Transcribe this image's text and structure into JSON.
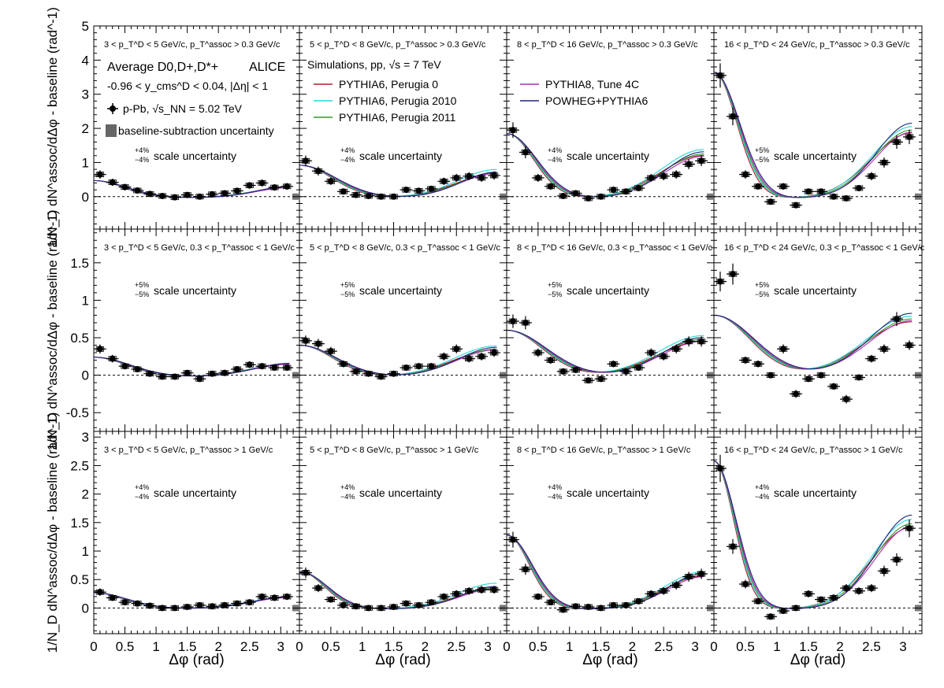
{
  "figure": {
    "experiment": "ALICE",
    "system_label": "Average D0,D+,D*+",
    "rapidity_label": "-0.96 < y_cms^D < 0.04, |Δη| < 1",
    "data_label": "p-Pb, √s_NN = 5.02 TeV",
    "baseline_label": "baseline-subtraction uncertainty",
    "simulations_label": "Simulations, pp, √s = 7 TeV",
    "xlabel": "Δφ (rad)",
    "ylabel": "1/N_D dN^assoc/dΔφ - baseline (rad^-1)"
  },
  "colors": {
    "PYTHIA6, Perugia 0": "#b01f2a",
    "PYTHIA6, Perugia 2010": "#26d6d6",
    "PYTHIA6, Perugia 2011": "#2a9a2a",
    "PYTHIA8, Tune 4C": "#b02ab4",
    "POWHEG+PYTHIA6": "#23237a"
  },
  "x_ticks": [
    "0",
    "0.5",
    "1",
    "1.5",
    "2",
    "2.5",
    "3"
  ],
  "rows": [
    {
      "ylim": [
        -0.95,
        5.0
      ],
      "ticks": [
        0,
        1,
        2,
        3,
        4,
        5
      ],
      "tick_labels": [
        "0",
        "1",
        "2",
        "3",
        "4",
        "5"
      ]
    },
    {
      "ylim": [
        -0.75,
        1.95
      ],
      "ticks": [
        -0.5,
        0,
        0.5,
        1,
        1.5
      ],
      "tick_labels": [
        "-0.5",
        "0",
        "0.5",
        "1",
        "1.5"
      ]
    },
    {
      "ylim": [
        -0.45,
        3.1
      ],
      "ticks": [
        0,
        0.5,
        1,
        1.5,
        2,
        2.5,
        3
      ],
      "tick_labels": [
        "0",
        "0.5",
        "1",
        "1.5",
        "2",
        "2.5",
        "3"
      ]
    }
  ],
  "chart_data": [
    {
      "type": "scatter",
      "row": 0,
      "col": 0,
      "title": {
        "ptd": "3 < p_T^D < 5 GeV/c",
        "assoc": "p_T^assoc > 0.3 GeV/c"
      },
      "scale": "4%",
      "scale_label": "scale uncertainty",
      "x": [
        0.1,
        0.3,
        0.5,
        0.7,
        0.9,
        1.1,
        1.3,
        1.5,
        1.7,
        1.9,
        2.1,
        2.3,
        2.5,
        2.7,
        2.9,
        3.1
      ],
      "y": [
        0.65,
        0.42,
        0.28,
        0.18,
        0.08,
        0.02,
        -0.02,
        0.05,
        0.0,
        0.07,
        0.1,
        0.17,
        0.33,
        0.4,
        0.27,
        0.3
      ],
      "model": {
        "near": 0.5,
        "sig": 0.5,
        "away": 0.3,
        "wa": 0.55,
        "off": -0.03,
        "mod": [
          0.99,
          1.03,
          1.0,
          0.98,
          1.1
        ]
      }
    },
    {
      "type": "scatter",
      "row": 0,
      "col": 1,
      "title": {
        "ptd": "5 < p_T^D < 8 GeV/c",
        "assoc": "p_T^assoc > 0.3 GeV/c"
      },
      "scale": "4%",
      "scale_label": "scale uncertainty",
      "x": [
        0.1,
        0.3,
        0.5,
        0.7,
        0.9,
        1.1,
        1.3,
        1.5,
        1.7,
        1.9,
        2.1,
        2.3,
        2.5,
        2.7,
        2.9,
        3.1
      ],
      "y": [
        1.05,
        0.75,
        0.45,
        0.15,
        0.05,
        0.02,
        0.0,
        0.0,
        0.2,
        0.17,
        0.23,
        0.45,
        0.55,
        0.6,
        0.55,
        0.62
      ],
      "model": {
        "near": 0.95,
        "sig": 0.55,
        "away": 0.75,
        "wa": 0.6,
        "off": -0.03,
        "mod": [
          0.95,
          1.1,
          0.97,
          0.95,
          1.0
        ]
      }
    },
    {
      "type": "scatter",
      "row": 0,
      "col": 2,
      "title": {
        "ptd": "8 < p_T^D < 16 GeV/c",
        "assoc": "p_T^assoc > 0.3 GeV/c"
      },
      "scale": "4%",
      "scale_label": "scale uncertainty",
      "x": [
        0.1,
        0.3,
        0.5,
        0.7,
        0.9,
        1.1,
        1.3,
        1.5,
        1.7,
        1.9,
        2.1,
        2.3,
        2.5,
        2.7,
        2.9,
        3.1
      ],
      "y": [
        1.95,
        1.3,
        0.55,
        0.3,
        0.02,
        0.1,
        -0.05,
        0.0,
        0.2,
        0.15,
        0.25,
        0.55,
        0.6,
        0.65,
        0.95,
        1.05
      ],
      "model": {
        "near": 1.9,
        "sig": 0.45,
        "away": 1.3,
        "wa": 0.65,
        "off": -0.05,
        "mod": [
          0.97,
          1.1,
          1.0,
          0.95,
          1.05
        ]
      }
    },
    {
      "type": "scatter",
      "row": 0,
      "col": 3,
      "title": {
        "ptd": "16 < p_T^D < 24 GeV/c",
        "assoc": "p_T^assoc > 0.3 GeV/c"
      },
      "scale": "5%",
      "scale_label": "scale uncertainty",
      "x": [
        0.1,
        0.3,
        0.5,
        0.7,
        0.9,
        1.1,
        1.3,
        1.5,
        1.7,
        1.9,
        2.1,
        2.3,
        2.5,
        2.7,
        2.9,
        3.1
      ],
      "y": [
        3.55,
        2.35,
        0.65,
        0.3,
        -0.15,
        0.3,
        -0.25,
        0.15,
        0.15,
        0.0,
        -0.05,
        0.25,
        0.6,
        1.0,
        1.6,
        1.75
      ],
      "model": {
        "near": 3.7,
        "sig": 0.38,
        "away": 2.0,
        "wa": 0.6,
        "off": -0.05,
        "mod": [
          0.96,
          1.05,
          1.0,
          0.97,
          1.1
        ]
      }
    },
    {
      "type": "scatter",
      "row": 1,
      "col": 0,
      "title": {
        "ptd": "3 < p_T^D < 5 GeV/c",
        "assoc": "0.3 < p_T^assoc < 1 GeV/c"
      },
      "scale": "5%",
      "scale_label": "scale uncertainty",
      "x": [
        0.1,
        0.3,
        0.5,
        0.7,
        0.9,
        1.1,
        1.3,
        1.5,
        1.7,
        1.9,
        2.1,
        2.3,
        2.5,
        2.7,
        2.9,
        3.1
      ],
      "y": [
        0.35,
        0.22,
        0.12,
        0.08,
        0.02,
        -0.02,
        -0.02,
        0.03,
        -0.05,
        0.02,
        0.03,
        0.08,
        0.14,
        0.12,
        0.1,
        0.1
      ],
      "model": {
        "near": 0.26,
        "sig": 0.55,
        "away": 0.17,
        "wa": 0.6,
        "off": -0.02,
        "mod": [
          0.98,
          1.0,
          1.0,
          0.97,
          1.05
        ]
      }
    },
    {
      "type": "scatter",
      "row": 1,
      "col": 1,
      "title": {
        "ptd": "5 < p_T^D < 8 GeV/c",
        "assoc": "0.3 < p_T^assoc < 1 GeV/c"
      },
      "scale": "5%",
      "scale_label": "scale uncertainty",
      "x": [
        0.1,
        0.3,
        0.5,
        0.7,
        0.9,
        1.1,
        1.3,
        1.5,
        1.7,
        1.9,
        2.1,
        2.3,
        2.5,
        2.7,
        2.9,
        3.1
      ],
      "y": [
        0.46,
        0.42,
        0.32,
        0.15,
        0.05,
        0.02,
        -0.02,
        0.02,
        0.1,
        0.12,
        0.12,
        0.25,
        0.35,
        0.22,
        0.25,
        0.3
      ],
      "model": {
        "near": 0.42,
        "sig": 0.55,
        "away": 0.38,
        "wa": 0.65,
        "off": -0.02,
        "mod": [
          0.95,
          1.08,
          0.97,
          0.95,
          1.03
        ]
      }
    },
    {
      "type": "scatter",
      "row": 1,
      "col": 2,
      "title": {
        "ptd": "8 < p_T^D < 16 GeV/c",
        "assoc": "0.3 < p_T^assoc < 1 GeV/c"
      },
      "scale": "5%",
      "scale_label": "scale uncertainty",
      "x": [
        0.1,
        0.3,
        0.5,
        0.7,
        0.9,
        1.1,
        1.3,
        1.5,
        1.7,
        1.9,
        2.1,
        2.3,
        2.5,
        2.7,
        2.9,
        3.1
      ],
      "y": [
        0.72,
        0.7,
        0.3,
        0.2,
        0.05,
        0.07,
        -0.07,
        -0.05,
        0.15,
        0.05,
        0.1,
        0.3,
        0.25,
        0.35,
        0.45,
        0.45
      ],
      "model": {
        "near": 0.62,
        "sig": 0.6,
        "away": 0.5,
        "wa": 0.7,
        "off": -0.02,
        "mod": [
          0.95,
          1.1,
          1.0,
          0.95,
          1.05
        ]
      }
    },
    {
      "type": "scatter",
      "row": 1,
      "col": 3,
      "title": {
        "ptd": "16 < p_T^D < 24 GeV/c",
        "assoc": "0.3 < p_T^assoc < 1 GeV/c"
      },
      "scale": "5%",
      "scale_label": "scale uncertainty",
      "x": [
        0.1,
        0.3,
        0.5,
        0.7,
        0.9,
        1.1,
        1.3,
        1.5,
        1.7,
        1.9,
        2.1,
        2.3,
        2.5,
        2.7,
        2.9,
        3.1
      ],
      "y": [
        1.25,
        1.35,
        0.2,
        0.15,
        0.0,
        0.35,
        -0.25,
        -0.05,
        0.0,
        -0.15,
        -0.32,
        -0.03,
        0.22,
        0.35,
        0.75,
        0.4
      ],
      "model": {
        "near": 0.8,
        "sig": 0.6,
        "away": 0.75,
        "wa": 0.7,
        "off": 0.0,
        "mod": [
          0.95,
          1.05,
          1.0,
          0.97,
          1.1
        ]
      }
    },
    {
      "type": "scatter",
      "row": 2,
      "col": 0,
      "title": {
        "ptd": "3 < p_T^D < 5 GeV/c",
        "assoc": "p_T^assoc > 1 GeV/c"
      },
      "scale": "4%",
      "scale_label": "scale uncertainty",
      "x": [
        0.1,
        0.3,
        0.5,
        0.7,
        0.9,
        1.1,
        1.3,
        1.5,
        1.7,
        1.9,
        2.1,
        2.3,
        2.5,
        2.7,
        2.9,
        3.1
      ],
      "y": [
        0.28,
        0.18,
        0.1,
        0.08,
        0.04,
        0.0,
        0.0,
        0.02,
        0.05,
        0.03,
        0.05,
        0.08,
        0.1,
        0.2,
        0.18,
        0.2
      ],
      "model": {
        "near": 0.28,
        "sig": 0.5,
        "away": 0.2,
        "wa": 0.6,
        "off": -0.01,
        "mod": [
          0.98,
          1.02,
          1.0,
          0.97,
          1.05
        ]
      }
    },
    {
      "type": "scatter",
      "row": 2,
      "col": 1,
      "title": {
        "ptd": "5 < p_T^D < 8 GeV/c",
        "assoc": "p_T^assoc > 1 GeV/c"
      },
      "scale": "4%",
      "scale_label": "scale uncertainty",
      "x": [
        0.1,
        0.3,
        0.5,
        0.7,
        0.9,
        1.1,
        1.3,
        1.5,
        1.7,
        1.9,
        2.1,
        2.3,
        2.5,
        2.7,
        2.9,
        3.1
      ],
      "y": [
        0.62,
        0.35,
        0.15,
        0.05,
        0.03,
        0.0,
        0.0,
        0.02,
        0.08,
        0.05,
        0.1,
        0.2,
        0.25,
        0.3,
        0.32,
        0.32
      ],
      "model": {
        "near": 0.66,
        "sig": 0.42,
        "away": 0.38,
        "wa": 0.6,
        "off": -0.02,
        "mod": [
          0.95,
          1.2,
          1.0,
          0.95,
          1.05
        ]
      }
    },
    {
      "type": "scatter",
      "row": 2,
      "col": 2,
      "title": {
        "ptd": "8 < p_T^D < 16 GeV/c",
        "assoc": "p_T^assoc > 1 GeV/c"
      },
      "scale": "4%",
      "scale_label": "scale uncertainty",
      "x": [
        0.1,
        0.3,
        0.5,
        0.7,
        0.9,
        1.1,
        1.3,
        1.5,
        1.7,
        1.9,
        2.1,
        2.3,
        2.5,
        2.7,
        2.9,
        3.1
      ],
      "y": [
        1.2,
        0.68,
        0.2,
        0.1,
        -0.03,
        0.03,
        0.02,
        0.0,
        0.05,
        0.05,
        0.12,
        0.25,
        0.3,
        0.4,
        0.55,
        0.6
      ],
      "model": {
        "near": 1.3,
        "sig": 0.38,
        "away": 0.6,
        "wa": 0.6,
        "off": -0.02,
        "mod": [
          0.97,
          1.1,
          1.0,
          0.95,
          1.05
        ]
      }
    },
    {
      "type": "scatter",
      "row": 2,
      "col": 3,
      "title": {
        "ptd": "16 < p_T^D < 24 GeV/c",
        "assoc": "p_T^assoc > 1 GeV/c"
      },
      "scale": "4%",
      "scale_label": "scale uncertainty",
      "x": [
        0.1,
        0.3,
        0.5,
        0.7,
        0.9,
        1.1,
        1.3,
        1.5,
        1.7,
        1.9,
        2.1,
        2.3,
        2.5,
        2.7,
        2.9,
        3.1
      ],
      "y": [
        2.45,
        1.08,
        0.42,
        0.12,
        -0.15,
        -0.05,
        0.0,
        0.25,
        0.15,
        0.18,
        0.35,
        0.3,
        0.35,
        0.65,
        0.85,
        1.4
      ],
      "model": {
        "near": 2.6,
        "sig": 0.33,
        "away": 1.5,
        "wa": 0.6,
        "off": -0.02,
        "mod": [
          0.96,
          1.05,
          1.0,
          0.97,
          1.1
        ]
      }
    }
  ]
}
